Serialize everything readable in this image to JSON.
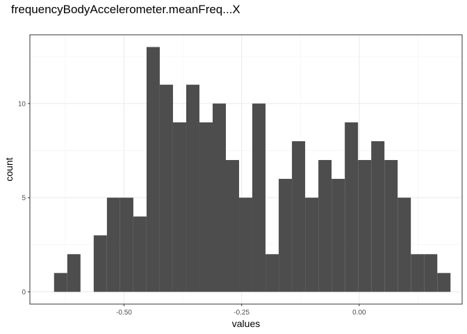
{
  "chart_data": {
    "type": "bar",
    "title": "frequencyBodyAccelerometer.meanFreq...X",
    "xlabel": "values",
    "ylabel": "count",
    "x_ticks": [
      -0.5,
      -0.25,
      0.0
    ],
    "x_tick_labels": [
      "-0.50",
      "-0.25",
      "0.00"
    ],
    "y_ticks": [
      0,
      5,
      10
    ],
    "y_tick_labels": [
      "0",
      "5",
      "10"
    ],
    "xlim": [
      -0.7002,
      0.2189
    ],
    "ylim": [
      -0.65,
      13.65
    ],
    "grid": true,
    "bar_color": "#4d4d4d",
    "bin_width": 0.0281,
    "bins": [
      {
        "x0": -0.6488,
        "count": 1
      },
      {
        "x0": -0.6207,
        "count": 2
      },
      {
        "x0": -0.5926,
        "count": 0
      },
      {
        "x0": -0.5645,
        "count": 3
      },
      {
        "x0": -0.5364,
        "count": 5
      },
      {
        "x0": -0.5083,
        "count": 5
      },
      {
        "x0": -0.4802,
        "count": 4
      },
      {
        "x0": -0.4521,
        "count": 13
      },
      {
        "x0": -0.424,
        "count": 11
      },
      {
        "x0": -0.3959,
        "count": 9
      },
      {
        "x0": -0.3678,
        "count": 11
      },
      {
        "x0": -0.3397,
        "count": 9
      },
      {
        "x0": -0.3116,
        "count": 10
      },
      {
        "x0": -0.2835,
        "count": 7
      },
      {
        "x0": -0.2554,
        "count": 5
      },
      {
        "x0": -0.2273,
        "count": 10
      },
      {
        "x0": -0.1992,
        "count": 2
      },
      {
        "x0": -0.1711,
        "count": 6
      },
      {
        "x0": -0.143,
        "count": 8
      },
      {
        "x0": -0.1149,
        "count": 5
      },
      {
        "x0": -0.0868,
        "count": 7
      },
      {
        "x0": -0.0587,
        "count": 6
      },
      {
        "x0": -0.0306,
        "count": 9
      },
      {
        "x0": -0.0025,
        "count": 7
      },
      {
        "x0": 0.0256,
        "count": 8
      },
      {
        "x0": 0.0537,
        "count": 7
      },
      {
        "x0": 0.0818,
        "count": 5
      },
      {
        "x0": 0.1099,
        "count": 2
      },
      {
        "x0": 0.138,
        "count": 2
      },
      {
        "x0": 0.1661,
        "count": 1
      }
    ]
  }
}
